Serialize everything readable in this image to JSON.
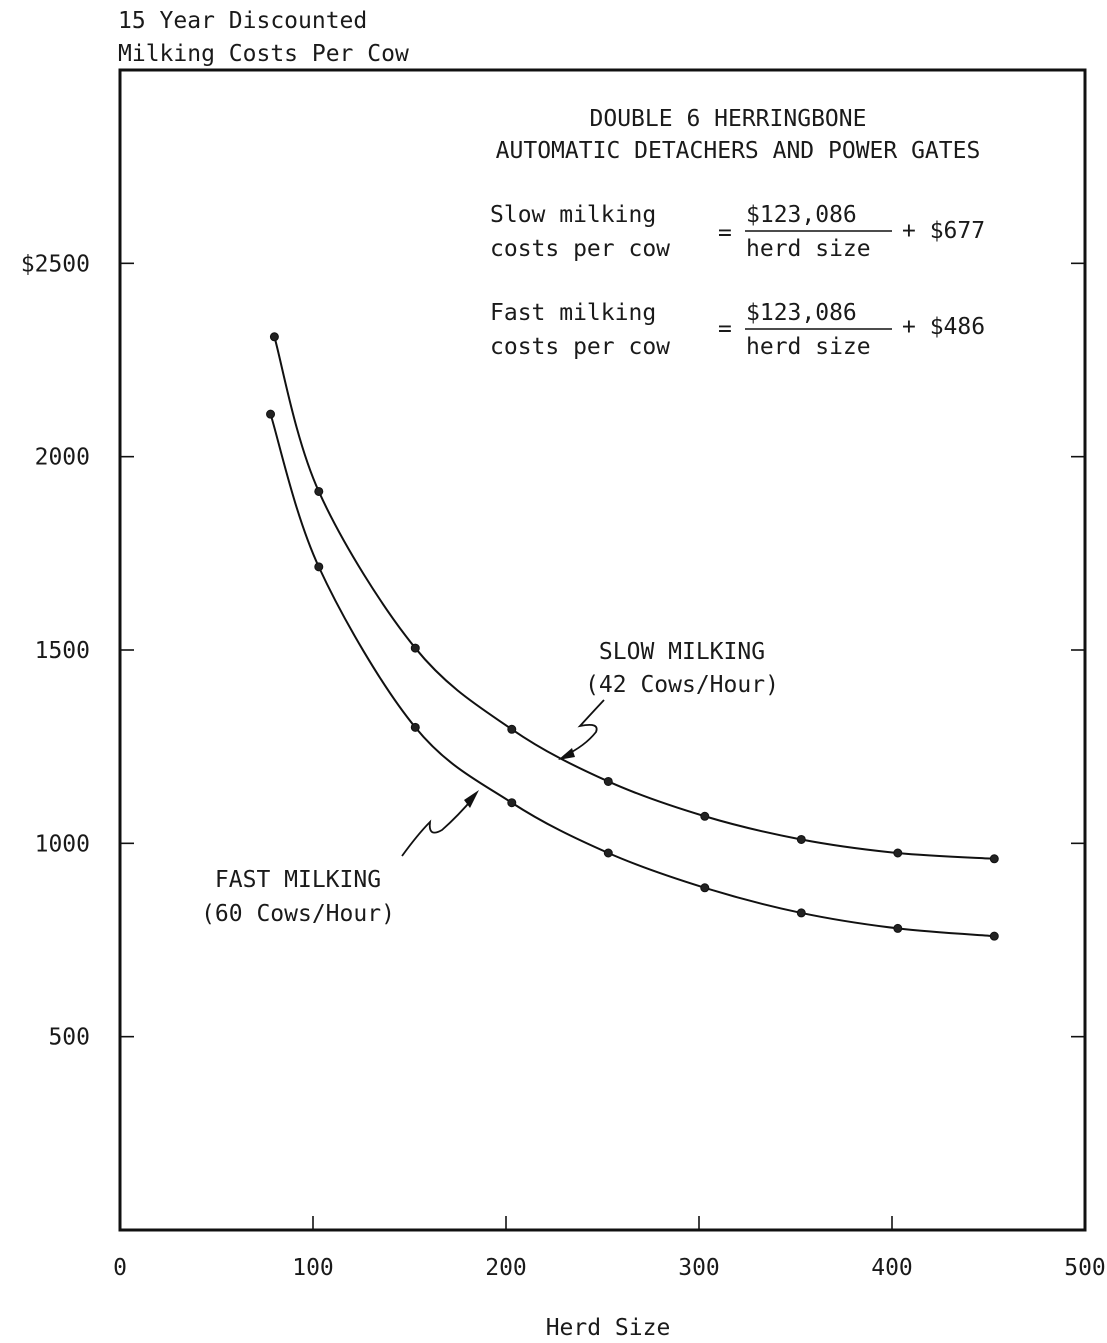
{
  "chart_data": {
    "type": "line",
    "ylabel_lines": [
      "15 Year Discounted",
      "Milking Costs Per Cow"
    ],
    "xlabel": "Herd Size",
    "xlim": [
      0,
      500
    ],
    "ylim": [
      0,
      3000
    ],
    "x_ticks": [
      0,
      100,
      200,
      300,
      400,
      500
    ],
    "x_tick_labels": [
      "0",
      "100",
      "200",
      "300",
      "400",
      "500"
    ],
    "y_ticks": [
      500,
      1000,
      1500,
      2000,
      2500
    ],
    "y_tick_labels": [
      "500",
      "1000",
      "1500",
      "2000",
      "$2500"
    ],
    "grid": false,
    "title_lines": [
      "DOUBLE 6 HERRINGBONE",
      "AUTOMATIC DETACHERS AND POWER GATES"
    ],
    "formulas": [
      {
        "lhs": [
          "Slow milking",
          "costs per cow"
        ],
        "eq": "=",
        "numerator": "$123,086",
        "denominator": "herd size",
        "constant": "+ $677"
      },
      {
        "lhs": [
          "Fast milking",
          "costs per cow"
        ],
        "eq": "=",
        "numerator": "$123,086",
        "denominator": "herd size",
        "constant": "+ $486"
      }
    ],
    "series": [
      {
        "name": "SLOW MILKING",
        "label_lines": [
          "SLOW MILKING",
          "(42 Cows/Hour)"
        ],
        "x": [
          80,
          103,
          153,
          203,
          253,
          303,
          353,
          403,
          453
        ],
        "y": [
          2310,
          1910,
          1505,
          1295,
          1160,
          1070,
          1010,
          975,
          960
        ]
      },
      {
        "name": "FAST MILKING",
        "label_lines": [
          "FAST MILKING",
          "(60 Cows/Hour)"
        ],
        "x": [
          78,
          103,
          153,
          203,
          253,
          303,
          353,
          403,
          453
        ],
        "y": [
          2110,
          1715,
          1300,
          1105,
          975,
          885,
          820,
          780,
          760
        ]
      }
    ]
  }
}
